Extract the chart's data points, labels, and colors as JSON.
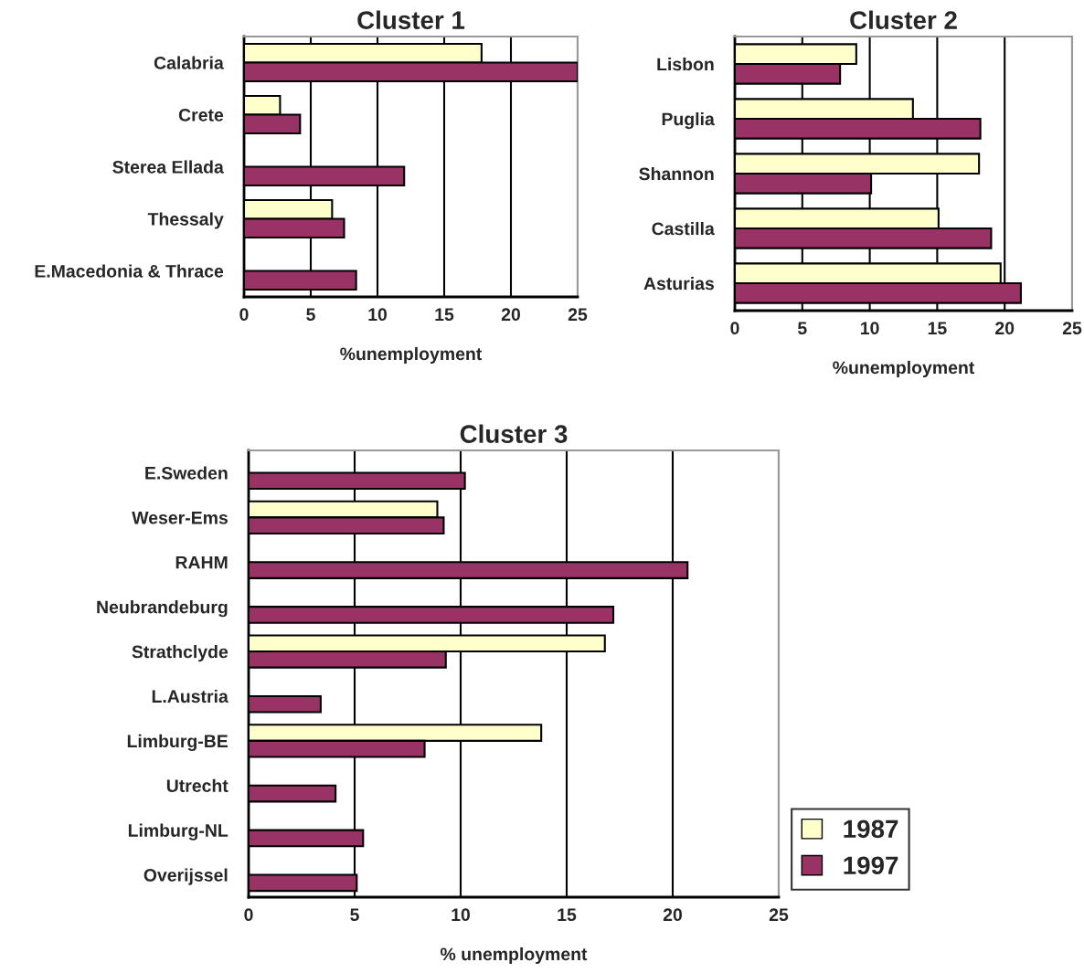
{
  "chart_data": [
    {
      "type": "bar",
      "orientation": "horizontal",
      "title": "Cluster 1",
      "xlabel": "%unemployment",
      "categories": [
        "Calabria",
        "Crete",
        "Sterea Ellada",
        "Thessaly",
        "E.Macedonia & Thrace"
      ],
      "series": [
        {
          "color": "#ffffcc",
          "values": [
            17.8,
            2.7,
            null,
            6.6,
            null
          ]
        },
        {
          "color": "#993366",
          "values": [
            25,
            4.2,
            12.0,
            7.5,
            8.4
          ]
        }
      ],
      "xlim": [
        0,
        25
      ],
      "xticks": [
        0,
        5,
        10,
        15,
        20,
        25
      ],
      "grid": "x",
      "legend": false
    },
    {
      "type": "bar",
      "orientation": "horizontal",
      "title": "Cluster 2",
      "xlabel": "%unemployment",
      "categories": [
        "Lisbon",
        "Puglia",
        "Shannon",
        "Castilla",
        "Asturias"
      ],
      "series": [
        {
          "color": "#ffffcc",
          "values": [
            9.0,
            13.2,
            18.1,
            15.1,
            19.7
          ]
        },
        {
          "color": "#993366",
          "values": [
            7.8,
            18.2,
            10.1,
            19.0,
            21.2
          ]
        }
      ],
      "xlim": [
        0,
        25
      ],
      "xticks": [
        0,
        5,
        10,
        15,
        20,
        25
      ],
      "grid": "x",
      "legend": false
    },
    {
      "type": "bar",
      "orientation": "horizontal",
      "title": "Cluster 3",
      "xlabel": "% unemployment",
      "categories": [
        "E.Sweden",
        "Weser-Ems",
        "RAHM",
        "Neubrandeburg",
        "Strathclyde",
        "L.Austria",
        "Limburg-BE",
        "Utrecht",
        "Limburg-NL",
        "Overijssel"
      ],
      "series": [
        {
          "name": "1987",
          "color": "#ffffcc",
          "values": [
            null,
            8.9,
            null,
            null,
            16.8,
            null,
            13.8,
            null,
            null,
            null
          ]
        },
        {
          "name": "1997",
          "color": "#993366",
          "values": [
            10.2,
            9.2,
            20.7,
            17.2,
            9.3,
            3.4,
            8.3,
            4.1,
            5.4,
            5.1
          ]
        }
      ],
      "xlim": [
        0,
        25
      ],
      "xticks": [
        0,
        5,
        10,
        15,
        20,
        25
      ],
      "grid": "x",
      "legend": "bottom right"
    }
  ]
}
